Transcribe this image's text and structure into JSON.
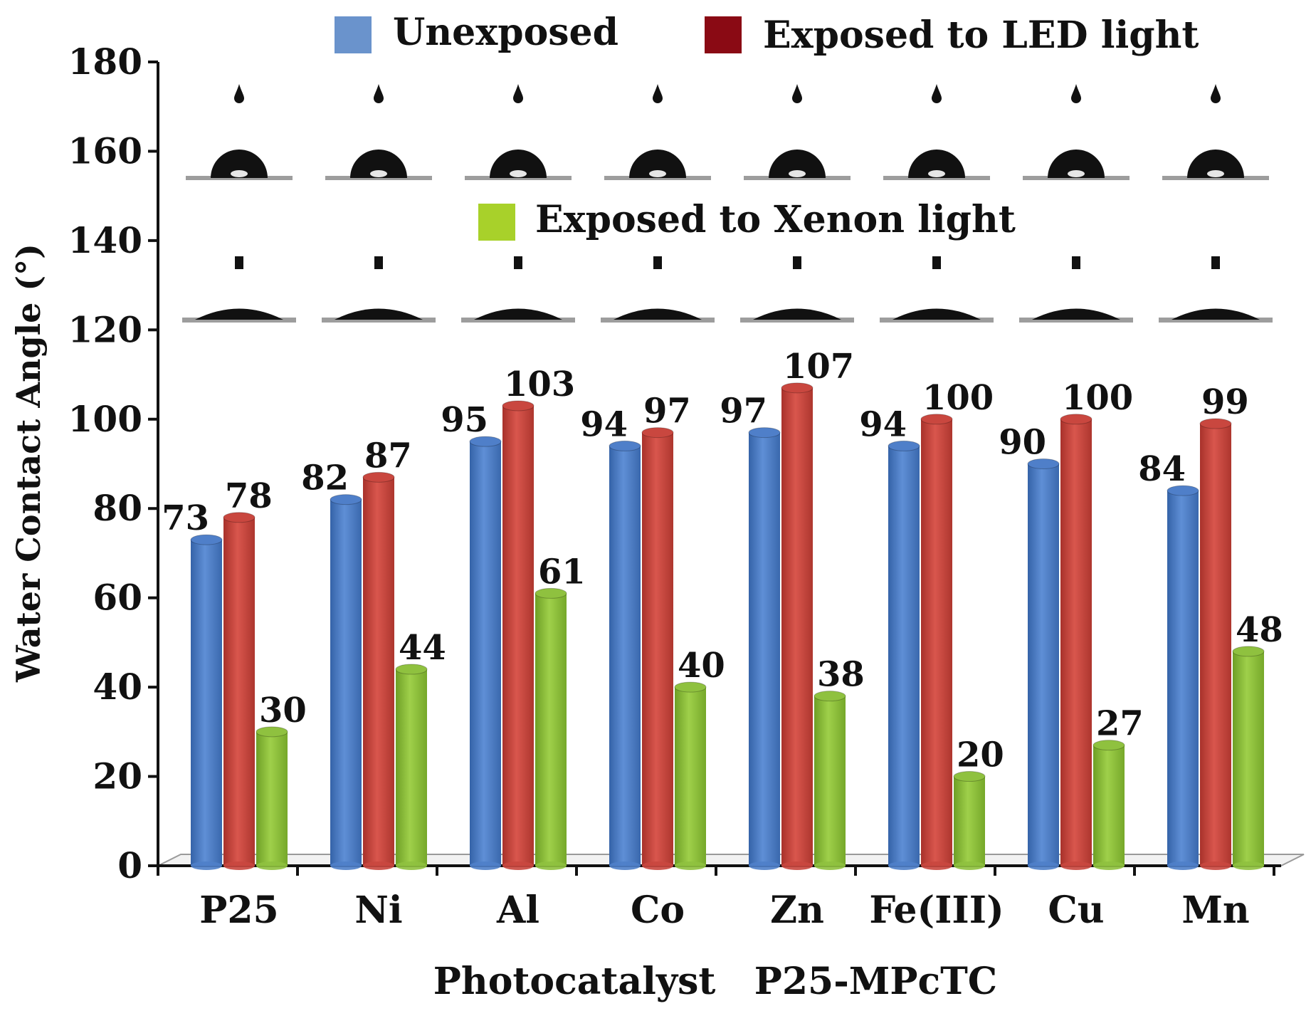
{
  "chart_data": {
    "type": "bar",
    "title": "",
    "xlabel": "Photocatalyst   P25-MPcTC",
    "ylabel": "Water Contact Angle (°)",
    "ylim": [
      0,
      180
    ],
    "yticks": [
      0,
      20,
      40,
      60,
      80,
      100,
      120,
      140,
      160,
      180
    ],
    "grid": false,
    "legend_position": "top",
    "categories": [
      "P25",
      "Ni",
      "Al",
      "Co",
      "Zn",
      "Fe(III)",
      "Cu",
      "Mn"
    ],
    "series": [
      {
        "name": "Unexposed",
        "color": "#4f7fc9",
        "values": [
          73,
          82,
          95,
          94,
          97,
          94,
          90,
          84
        ]
      },
      {
        "name": "Exposed to LED light",
        "color": "#c9473f",
        "values": [
          78,
          87,
          103,
          97,
          107,
          100,
          100,
          99
        ]
      },
      {
        "name": "Exposed to Xenon light",
        "color": "#8fc13f",
        "values": [
          30,
          44,
          61,
          40,
          38,
          20,
          27,
          48
        ]
      }
    ],
    "legend_swatch_colors": [
      "#6a93cc",
      "#8a0a14",
      "#a8d12a"
    ],
    "droplet_images": {
      "upper_row": "water droplet on unexposed surface (one per photocatalyst)",
      "lower_row": "water droplet on light-exposed surface (one per photocatalyst)"
    }
  }
}
